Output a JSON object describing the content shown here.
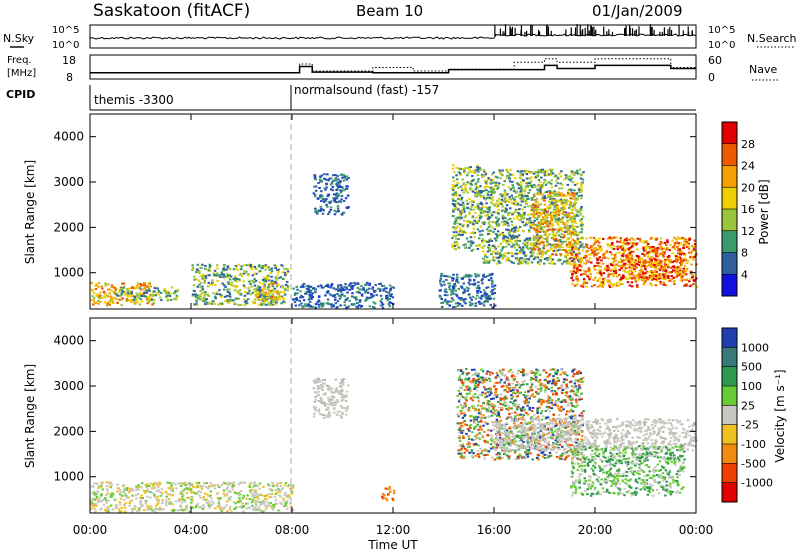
{
  "header": {
    "station": "Saskatoon (fitACF)",
    "beam": "Beam 10",
    "date": "01/Jan/2009"
  },
  "noise_panel": {
    "left_label": "N.Sky",
    "right_label": "N.Search",
    "left_top_tick": "10^5",
    "left_bottom_tick": "10^0",
    "right_top_tick": "10^5",
    "right_bottom_tick": "10^0"
  },
  "freq_panel": {
    "left_label_line1": "Freq.",
    "left_label_line2": "[MHz]",
    "right_label": "Nave",
    "left_ticks": [
      "18",
      "8"
    ],
    "right_ticks": [
      "60",
      "0"
    ]
  },
  "cpid_panel": {
    "label": "CPID",
    "segments": [
      {
        "text": "themis -3300",
        "start_hour": 0
      },
      {
        "text": "normalsound (fast) -157",
        "start_hour": 8
      }
    ]
  },
  "power_panel": {
    "ylabel": "Slant Range [km]",
    "colorbar_label": "Power [dB]",
    "colorbar_ticks": [
      "28",
      "24",
      "20",
      "16",
      "12",
      "8",
      "4"
    ],
    "colorbar_colors": [
      "#e00000",
      "#ee5a00",
      "#f5a000",
      "#eed000",
      "#9ac63a",
      "#3a9a6a",
      "#2f5f9f",
      "#1010e0"
    ]
  },
  "velocity_panel": {
    "ylabel": "Slant Range [km]",
    "colorbar_label": "Velocity [m s⁻¹]",
    "colorbar_ticks": [
      "1000",
      "500",
      "100",
      "25",
      "-25",
      "-100",
      "-500",
      "-1000"
    ],
    "colorbar_colors": [
      "#1f3faf",
      "#3a7a7a",
      "#2f9a4f",
      "#66cc33",
      "#c8c8c0",
      "#f0c020",
      "#f08a10",
      "#f04000",
      "#e00000"
    ]
  },
  "x_axis": {
    "label": "Time UT",
    "ticks": [
      "00:00",
      "04:00",
      "08:00",
      "12:00",
      "16:00",
      "20:00",
      "00:00"
    ]
  },
  "chart_data": {
    "type": "heatmap",
    "title": "Saskatoon (fitACF)",
    "subtitle": "Beam 10 — 01/Jan/2009",
    "xlabel": "Time UT",
    "ylabel": "Slant Range [km]",
    "xlim_hours": [
      0,
      24
    ],
    "ylim_km": [
      200,
      4500
    ],
    "y_ticks_km": [
      1000,
      2000,
      3000,
      4000
    ],
    "x_ticks": [
      "00:00",
      "04:00",
      "08:00",
      "12:00",
      "16:00",
      "20:00",
      "00:00"
    ],
    "grid": false,
    "freq_mhz_series": [
      {
        "start": 0.0,
        "end": 8.3,
        "value": 10.5
      },
      {
        "start": 8.3,
        "end": 8.8,
        "value": 13.5
      },
      {
        "start": 8.8,
        "end": 11.2,
        "value": 10.8
      },
      {
        "start": 11.2,
        "end": 14.2,
        "value": 10.5
      },
      {
        "start": 14.2,
        "end": 18.0,
        "value": 12.0
      },
      {
        "start": 18.0,
        "end": 18.5,
        "value": 14.0
      },
      {
        "start": 18.5,
        "end": 20.0,
        "value": 12.5
      },
      {
        "start": 20.0,
        "end": 23.0,
        "value": 14.0
      },
      {
        "start": 23.0,
        "end": 24.0,
        "value": 12.5
      }
    ],
    "nave_series": [
      {
        "start": 0.0,
        "end": 8.3,
        "value": 15
      },
      {
        "start": 8.3,
        "end": 8.8,
        "value": 40
      },
      {
        "start": 8.8,
        "end": 11.2,
        "value": 20
      },
      {
        "start": 11.2,
        "end": 12.8,
        "value": 30
      },
      {
        "start": 12.8,
        "end": 14.2,
        "value": 20
      },
      {
        "start": 14.2,
        "end": 16.8,
        "value": 25
      },
      {
        "start": 16.8,
        "end": 18.0,
        "value": 45
      },
      {
        "start": 18.0,
        "end": 18.5,
        "value": 55
      },
      {
        "start": 18.5,
        "end": 20.0,
        "value": 45
      },
      {
        "start": 20.0,
        "end": 23.0,
        "value": 55
      },
      {
        "start": 23.0,
        "end": 24.0,
        "value": 30
      }
    ],
    "power_regions": [
      {
        "t0": 0.0,
        "t1": 2.5,
        "r0": 300,
        "r1": 800,
        "level": "high",
        "note": "low-range backscatter"
      },
      {
        "t0": 1.0,
        "t1": 3.5,
        "r0": 400,
        "r1": 700,
        "level": "mid"
      },
      {
        "t0": 4.0,
        "t1": 7.8,
        "r0": 300,
        "r1": 1200,
        "level": "mid"
      },
      {
        "t0": 6.5,
        "t1": 7.5,
        "r0": 400,
        "r1": 800,
        "level": "high"
      },
      {
        "t0": 8.0,
        "t1": 12.0,
        "r0": 250,
        "r1": 800,
        "level": "low"
      },
      {
        "t0": 8.8,
        "t1": 10.2,
        "r0": 2300,
        "r1": 3200,
        "level": "low"
      },
      {
        "t0": 13.8,
        "t1": 16.0,
        "r0": 250,
        "r1": 1000,
        "level": "low"
      },
      {
        "t0": 14.3,
        "t1": 15.5,
        "r0": 1500,
        "r1": 3400,
        "level": "mid"
      },
      {
        "t0": 15.5,
        "t1": 19.5,
        "r0": 1200,
        "r1": 3300,
        "level": "mid"
      },
      {
        "t0": 17.5,
        "t1": 19.2,
        "r0": 1400,
        "r1": 2800,
        "level": "high"
      },
      {
        "t0": 19.0,
        "t1": 24.0,
        "r0": 700,
        "r1": 1800,
        "level": "very-high"
      },
      {
        "t0": 21.0,
        "t1": 23.5,
        "r0": 900,
        "r1": 1600,
        "level": "very-high"
      }
    ],
    "velocity_regions": [
      {
        "t0": 0.0,
        "t1": 8.0,
        "r0": 250,
        "r1": 900,
        "velocity": "small-mixed"
      },
      {
        "t0": 8.8,
        "t1": 10.2,
        "r0": 2300,
        "r1": 3200,
        "velocity": "near-zero"
      },
      {
        "t0": 11.5,
        "t1": 12.0,
        "r0": 500,
        "r1": 800,
        "velocity": "-500"
      },
      {
        "t0": 14.5,
        "t1": 19.5,
        "r0": 1400,
        "r1": 3400,
        "velocity": "mixed"
      },
      {
        "t0": 16.0,
        "t1": 24.0,
        "r0": 1600,
        "r1": 2300,
        "velocity": "near-zero"
      },
      {
        "t0": 19.0,
        "t1": 23.5,
        "r0": 600,
        "r1": 1700,
        "velocity": "100"
      }
    ]
  }
}
